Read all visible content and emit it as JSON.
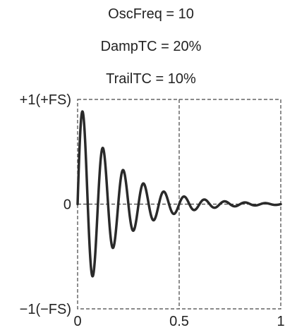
{
  "chart_data": {
    "type": "line",
    "params": [
      {
        "text": "OscFreq = 10"
      },
      {
        "text": "DampTC = 20%"
      },
      {
        "text": "TrailTC = 10%"
      }
    ],
    "y_tick_labels": [
      {
        "text": "+1(+FS)",
        "value": 1
      },
      {
        "text": "0",
        "value": 0
      },
      {
        "text": "−1(−FS)",
        "value": -1
      }
    ],
    "x_tick_labels": [
      {
        "text": "0",
        "value": 0
      },
      {
        "text": "0.5",
        "value": 0.5
      },
      {
        "text": "1",
        "value": 1
      }
    ],
    "xlim": [
      0,
      1
    ],
    "ylim": [
      -1,
      1
    ],
    "grid": true,
    "series": [
      {
        "model": "damped-sine",
        "osc_freq": 10,
        "damp_tc": 0.2,
        "trail_tc": 0.1,
        "color": "#2a2a2a"
      }
    ]
  }
}
